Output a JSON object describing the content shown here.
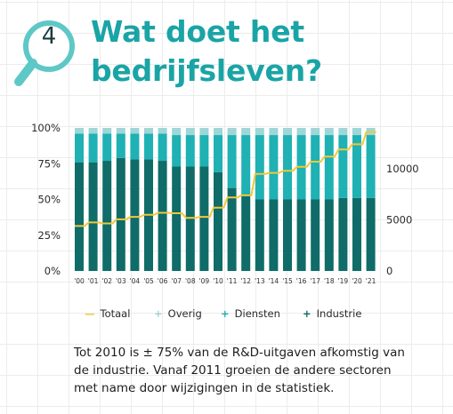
{
  "header": {
    "number": "4",
    "title_line1": "Wat doet het",
    "title_line2": "bedrijfsleven?"
  },
  "colors": {
    "industrie": "#0f6c68",
    "diensten": "#1fb1b3",
    "overig": "#9fd6d8",
    "totaal": "#f2c83c",
    "title": "#1aa4a6"
  },
  "chart_data": {
    "type": "bar",
    "stacked": true,
    "percent_axis": true,
    "categories": [
      "'00",
      "'01",
      "'02",
      "'03",
      "'04",
      "'05",
      "'06",
      "'07",
      "'08",
      "'09",
      "'10",
      "'11",
      "'12",
      "'13",
      "'14",
      "'15",
      "'16",
      "'17",
      "'18",
      "'19",
      "'20",
      "'21"
    ],
    "series": [
      {
        "name": "Industrie",
        "values": [
          76,
          76,
          77,
          79,
          78,
          78,
          77,
          73,
          73,
          73,
          69,
          58,
          53,
          50,
          50,
          50,
          50,
          50,
          50,
          51,
          51,
          51
        ]
      },
      {
        "name": "Diensten",
        "values": [
          20,
          20,
          19,
          17,
          18,
          18,
          19,
          22,
          22,
          22,
          26,
          37,
          42,
          45,
          45,
          45,
          45,
          45,
          45,
          44,
          44,
          44
        ]
      },
      {
        "name": "Overig",
        "values": [
          4,
          4,
          4,
          4,
          4,
          4,
          4,
          5,
          5,
          5,
          5,
          5,
          5,
          5,
          5,
          5,
          5,
          5,
          5,
          5,
          5,
          5
        ]
      }
    ],
    "line_series": {
      "name": "Totaal",
      "values": [
        4400,
        4750,
        4650,
        5050,
        5300,
        5500,
        5700,
        5650,
        5200,
        5300,
        6200,
        7200,
        7400,
        9500,
        9600,
        9800,
        10200,
        10700,
        11200,
        11900,
        12400,
        13600
      ]
    },
    "left_axis": {
      "ticks": [
        "0%",
        "25%",
        "50%",
        "75%",
        "100%"
      ],
      "ylim": [
        0,
        100
      ]
    },
    "right_axis": {
      "ticks": [
        "0",
        "5000",
        "10000"
      ],
      "ylim": [
        0,
        14000
      ]
    },
    "grid": true,
    "legend_position": "bottom"
  },
  "legend": [
    {
      "symbol": "—",
      "label": "Totaal"
    },
    {
      "symbol": "+",
      "label": "Overig"
    },
    {
      "symbol": "+",
      "label": "Diensten"
    },
    {
      "symbol": "+",
      "label": "Industrie"
    }
  ],
  "caption": {
    "line1": "Tot 2010 is ± 75% van de R&D-uitgaven afkomstig van",
    "line2": "de industrie. Vanaf 2011 groeien de andere sectoren",
    "line3": "met name door wijzigingen in de statistiek."
  }
}
